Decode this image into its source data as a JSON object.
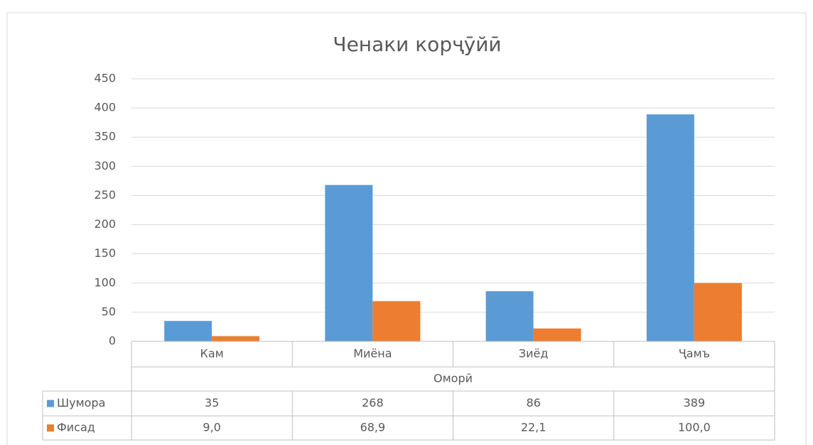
{
  "chart_data": {
    "type": "bar",
    "title": "Ченаки корҷӯйӣ",
    "x_label": "Оморӣ",
    "categories": [
      "Кам",
      "Миёна",
      "Зиёд",
      "Ҷамъ"
    ],
    "series": [
      {
        "name": "Шумора",
        "color": "#5b9bd5",
        "values": [
          35,
          268,
          86,
          389
        ]
      },
      {
        "name": "Фисад",
        "color": "#ed7d31",
        "values": [
          9.0,
          68.9,
          22.1,
          100.0
        ],
        "value_labels": [
          "9,0",
          "68,9",
          "22,1",
          "100,0"
        ]
      }
    ],
    "ylim": [
      0,
      450
    ],
    "yticks": [
      0,
      50,
      100,
      150,
      200,
      250,
      300,
      350,
      400,
      450
    ],
    "grid": true,
    "data_table": true
  }
}
